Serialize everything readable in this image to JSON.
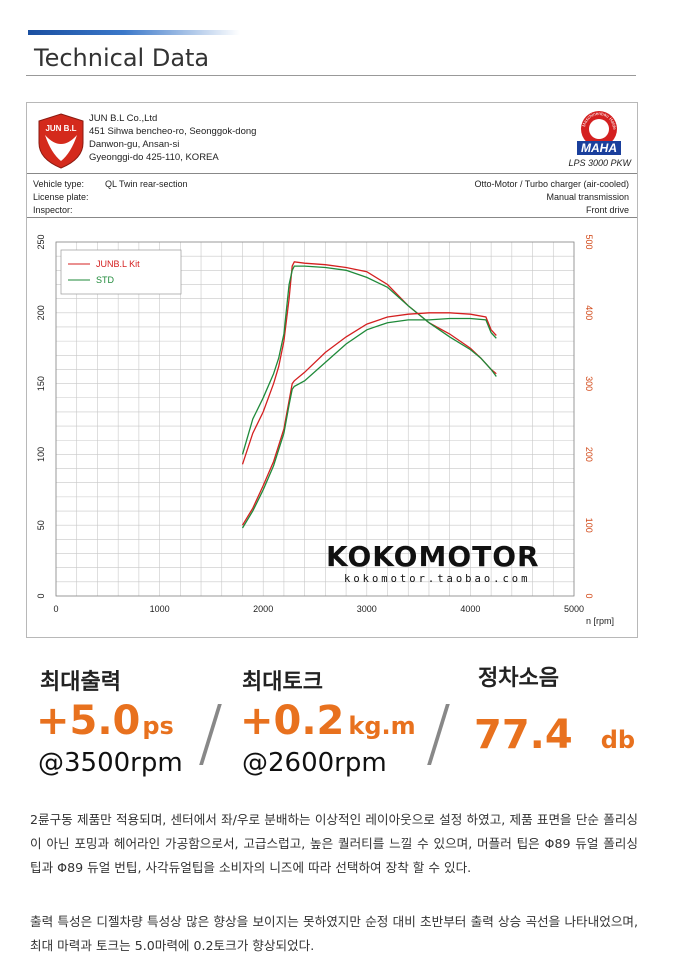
{
  "header": {
    "title": "Technical Data"
  },
  "sheet": {
    "logo_text": "JUN B.L",
    "company_lines": [
      "JUN B.L Co.,Ltd",
      "451 Sihwa bencheo-ro, Seonggok-dong",
      "Danwon-gu, Ansan-si",
      "Gyeonggi-do 425-110, KOREA"
    ],
    "maha_logo_text": "MAHA",
    "maha_ring_text": "Maschinenbau Haldenwang",
    "lps": "LPS 3000 PKW",
    "vehicle_labels": [
      "Vehicle type:",
      "License plate:",
      "Inspector:"
    ],
    "vehicle_type": "QL Twin rear-section",
    "vehicle_right": [
      "Otto-Motor / Turbo charger (air-cooled)",
      "Manual transmission",
      "Front drive"
    ]
  },
  "watermark": {
    "brand": "KOKOMOTOR",
    "url": "kokomotor.taobao.com"
  },
  "chart_data": {
    "type": "line",
    "x_unit_label": "n [rpm]",
    "xlim": [
      0,
      5000
    ],
    "x_ticks": [
      0,
      1000,
      2000,
      3000,
      4000,
      5000
    ],
    "left_axis": {
      "ylim": [
        0,
        250
      ],
      "ticks": [
        0,
        50,
        100,
        150,
        200,
        250
      ],
      "color": "#222222"
    },
    "right_axis": {
      "ylim": [
        0,
        500
      ],
      "ticks": [
        0,
        100,
        200,
        300,
        400,
        500
      ],
      "color": "#d24a1a"
    },
    "grid": true,
    "legend_position": "top-left",
    "series": [
      {
        "name": "JUNB.L Kit",
        "color": "#d42020",
        "kind": "upper",
        "x": [
          1800,
          1900,
          2000,
          2100,
          2150,
          2200,
          2250,
          2280,
          2300,
          2400,
          2600,
          2800,
          3000,
          3200,
          3400,
          3600,
          3800,
          4000,
          4100,
          4200,
          4250
        ],
        "y": [
          93,
          115,
          130,
          150,
          162,
          180,
          210,
          233,
          236,
          235,
          234,
          232,
          229,
          220,
          205,
          193,
          185,
          175,
          168,
          160,
          157
        ]
      },
      {
        "name": "STD",
        "color": "#1f8a3a",
        "kind": "upper",
        "x": [
          1800,
          1900,
          2000,
          2100,
          2150,
          2200,
          2250,
          2280,
          2300,
          2400,
          2600,
          2800,
          3000,
          3200,
          3400,
          3600,
          3800,
          4000,
          4100,
          4200,
          4250
        ],
        "y": [
          100,
          125,
          140,
          157,
          168,
          185,
          220,
          230,
          233,
          233,
          232,
          230,
          225,
          218,
          205,
          193,
          183,
          174,
          168,
          160,
          155
        ]
      },
      {
        "name": "JUNB.L Kit",
        "color": "#d42020",
        "kind": "lower",
        "x": [
          1800,
          1900,
          2000,
          2100,
          2200,
          2250,
          2280,
          2300,
          2400,
          2600,
          2800,
          3000,
          3200,
          3400,
          3600,
          3800,
          4000,
          4150,
          4200,
          4250
        ],
        "y": [
          50,
          62,
          78,
          95,
          118,
          138,
          150,
          152,
          158,
          172,
          183,
          192,
          197,
          199,
          200,
          200,
          199,
          197,
          188,
          184
        ]
      },
      {
        "name": "STD",
        "color": "#1f8a3a",
        "kind": "lower",
        "x": [
          1800,
          1900,
          2000,
          2100,
          2200,
          2250,
          2280,
          2300,
          2400,
          2600,
          2800,
          3000,
          3200,
          3400,
          3600,
          3800,
          4000,
          4150,
          4200,
          4250
        ],
        "y": [
          48,
          60,
          75,
          92,
          115,
          135,
          146,
          148,
          152,
          165,
          178,
          188,
          193,
          195,
          195,
          196,
          196,
          195,
          186,
          182
        ]
      }
    ]
  },
  "specs": [
    {
      "label": "최대출력",
      "value": "+5.0",
      "unit": "ps",
      "rpm": "@3500rpm"
    },
    {
      "label": "최대토크",
      "value": "+0.2",
      "unit": "kg.m",
      "rpm": "@2600rpm"
    },
    {
      "label": "정차소음",
      "value": "77.4",
      "unit": "db",
      "rpm": ""
    }
  ],
  "description": {
    "p1": "2륜구동 제품만 적용되며, 센터에서 좌/우로 분배하는 이상적인 레이아웃으로 설정 하였고, 제품 표면을 단순 폴리싱이 아닌 포밍과 헤어라인 가공함으로서, 고급스럽고, 높은 퀄러티를 느낄 수 있으며, 머플러 팁은 Φ89 듀얼 폴리싱 팁과 Φ89 듀얼 번팁, 사각듀얼팁을 소비자의 니즈에 따라 선택하여 장착 할 수 있다.",
    "p2": "출력 특성은 디젤차량 특성상 많은 향상을 보이지는 못하였지만 순정 대비 초반부터 출력 상승 곡선을 나타내었으며, 최대 마력과 토크는 5.0마력에 0.2토크가 향상되었다."
  }
}
